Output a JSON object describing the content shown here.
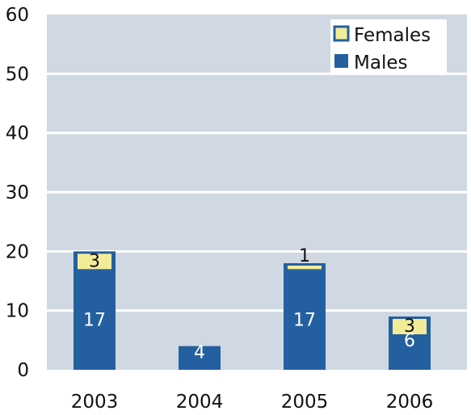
{
  "chart_data": {
    "type": "bar",
    "stacked": true,
    "categories": [
      "2003",
      "2004",
      "2005",
      "2006"
    ],
    "series": [
      {
        "name": "Males",
        "values": [
          17,
          4,
          17,
          6
        ],
        "color": "#2460a0",
        "labels": [
          "17",
          "4",
          "17",
          "6"
        ]
      },
      {
        "name": "Females",
        "values": [
          3,
          0,
          1,
          3
        ],
        "color": "#f2ec98",
        "labels": [
          "3",
          "",
          "1",
          "3"
        ]
      }
    ],
    "ylim": [
      0,
      60
    ],
    "yticks": [
      "0",
      "10",
      "20",
      "30",
      "40",
      "50",
      "60"
    ],
    "grid": true,
    "legend": "top-right",
    "background": "#cfd8e3"
  }
}
